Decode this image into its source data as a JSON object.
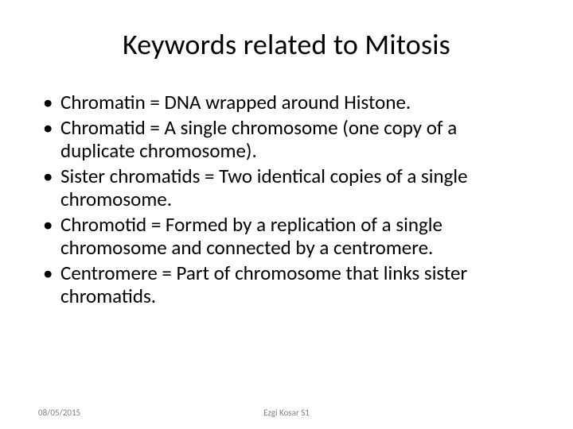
{
  "slide": {
    "title": "Keywords related to Mitosis",
    "title_fontsize": 36,
    "body_fontsize": 25,
    "background_color": "#ffffff",
    "text_color": "#000000",
    "footer_color": "#7f7f7f",
    "footer_fontsize": 11,
    "bullets": [
      "Chromatin = DNA wrapped around Histone.",
      "Chromatid = A single chromosome (one copy of a duplicate chromosome).",
      "Sister chromatids = Two identical copies of a single chromosome.",
      "Chromotid = Formed by a replication of a single chromosome and connected by a centromere.",
      "Centromere = Part of chromosome that links sister chromatids."
    ],
    "footer": {
      "date": "08/05/2015",
      "author": "Ezgi Kosar S1"
    }
  }
}
